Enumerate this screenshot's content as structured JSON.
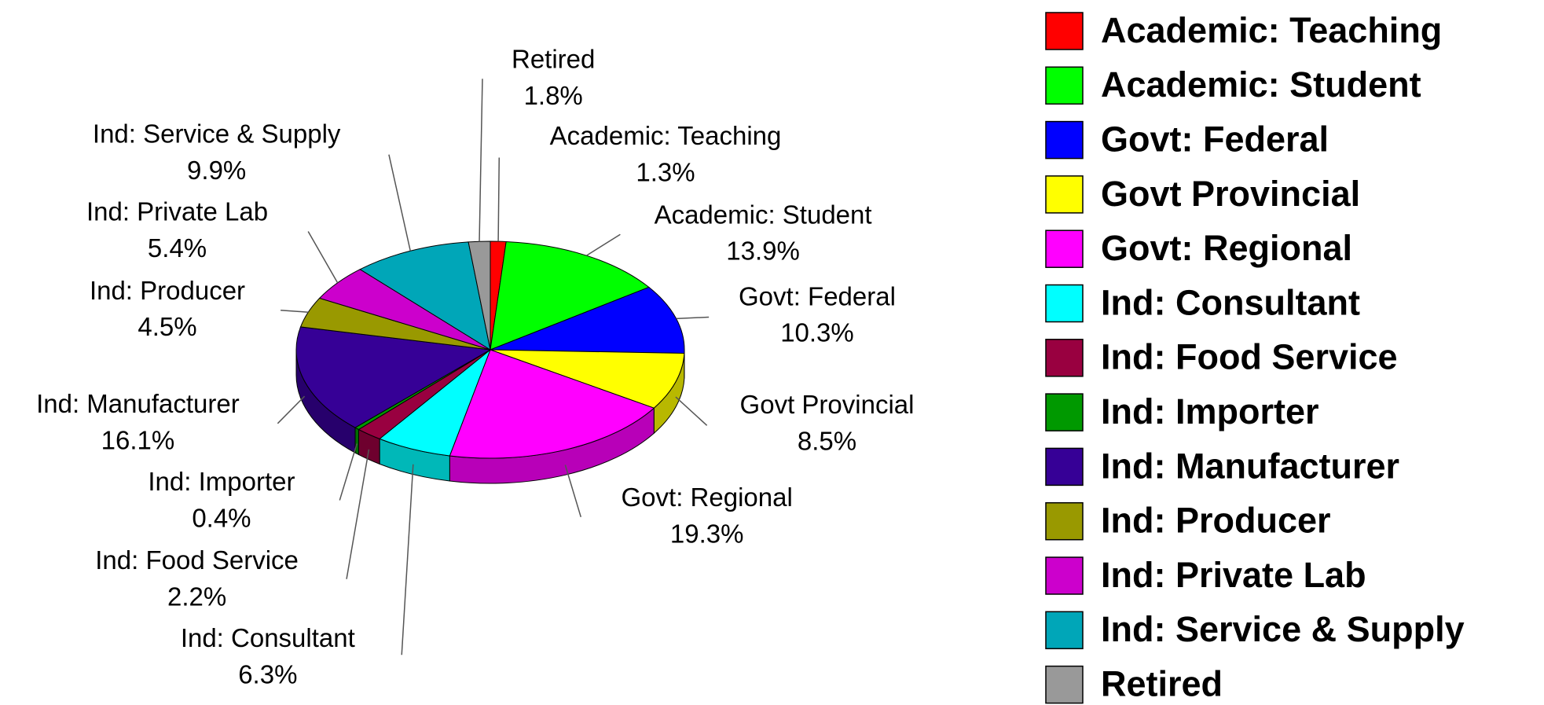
{
  "chart_data": {
    "type": "pie",
    "categories": [
      "Academic: Teaching",
      "Academic: Student",
      "Govt: Federal",
      "Govt Provincial",
      "Govt: Regional",
      "Ind: Consultant",
      "Ind: Food Service",
      "Ind: Importer",
      "Ind: Manufacturer",
      "Ind: Producer",
      "Ind: Private Lab",
      "Ind: Service & Supply",
      "Retired"
    ],
    "values": [
      1.3,
      13.9,
      10.3,
      8.5,
      19.3,
      6.3,
      2.2,
      0.4,
      16.1,
      4.5,
      5.4,
      9.9,
      1.8
    ],
    "value_labels": [
      "1.3%",
      "13.9%",
      "10.3%",
      "8.5%",
      "19.3%",
      "6.3%",
      "2.2%",
      "0.4%",
      "16.1%",
      "4.5%",
      "5.4%",
      "9.9%",
      "1.8%"
    ],
    "colors": [
      "#ff0000",
      "#00ff00",
      "#0000ff",
      "#ffff00",
      "#ff00ff",
      "#00ffff",
      "#990040",
      "#009900",
      "#360096",
      "#999900",
      "#cc00cc",
      "#00a6b8",
      "#999999"
    ],
    "legend": "right"
  }
}
